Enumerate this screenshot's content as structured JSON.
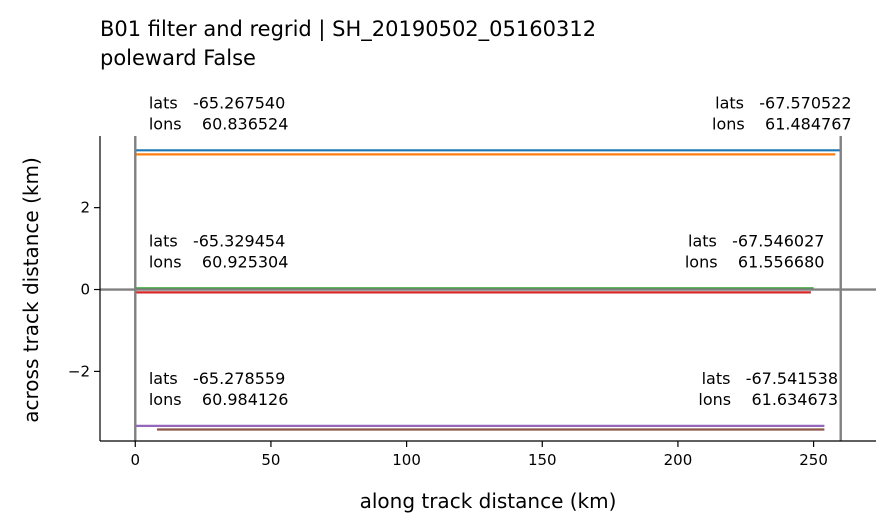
{
  "chart_data": {
    "type": "line",
    "title_line1": "B01 filter and regrid | SH_20190502_05160312",
    "title_line2": "poleward False",
    "xlabel": "along track distance (km)",
    "ylabel": "across track distance (km)",
    "xlim": [
      -13,
      273
    ],
    "ylim": [
      -3.7,
      3.75
    ],
    "xticks": [
      0,
      50,
      100,
      150,
      200,
      250
    ],
    "yticks": [
      -2,
      0,
      2
    ],
    "ytick_labels": [
      "−2",
      "0",
      "2"
    ],
    "grid": false,
    "vlines": [
      0,
      260
    ],
    "hline": 0,
    "reference_line_color": "#808080",
    "series": [
      {
        "color": "#1f77b4",
        "x": [
          0,
          260
        ],
        "y": [
          3.4,
          3.4
        ]
      },
      {
        "color": "#ff7f0e",
        "x": [
          0,
          258
        ],
        "y": [
          3.3,
          3.3
        ]
      },
      {
        "color": "#2ca02c",
        "x": [
          0,
          250
        ],
        "y": [
          0.03,
          0.03
        ]
      },
      {
        "color": "#d62728",
        "x": [
          0,
          249
        ],
        "y": [
          -0.07,
          -0.07
        ]
      },
      {
        "color": "#9467bd",
        "x": [
          0,
          254
        ],
        "y": [
          -3.33,
          -3.33
        ]
      },
      {
        "color": "#8c564b",
        "x": [
          8,
          254
        ],
        "y": [
          -3.42,
          -3.42
        ]
      }
    ],
    "annotations": [
      {
        "lats_label": "lats",
        "lats": "-65.267540",
        "lons_label": "lons",
        "lons": "60.836524",
        "x": 5,
        "y": 3.4,
        "align": "left"
      },
      {
        "lats_label": "lats",
        "lats": "-67.570522",
        "lons_label": "lons",
        "lons": "61.484767",
        "x": 264,
        "y": 3.4,
        "align": "right"
      },
      {
        "lats_label": "lats",
        "lats": "-65.329454",
        "lons_label": "lons",
        "lons": "60.925304",
        "x": 5,
        "y": 0.03,
        "align": "left"
      },
      {
        "lats_label": "lats",
        "lats": "-67.546027",
        "lons_label": "lons",
        "lons": "61.556680",
        "x": 254,
        "y": 0.03,
        "align": "right"
      },
      {
        "lats_label": "lats",
        "lats": "-65.278559",
        "lons_label": "lons",
        "lons": "60.984126",
        "x": 5,
        "y": -3.33,
        "align": "left"
      },
      {
        "lats_label": "lats",
        "lats": "-67.541538",
        "lons_label": "lons",
        "lons": "61.634673",
        "x": 259,
        "y": -3.33,
        "align": "right"
      }
    ]
  }
}
